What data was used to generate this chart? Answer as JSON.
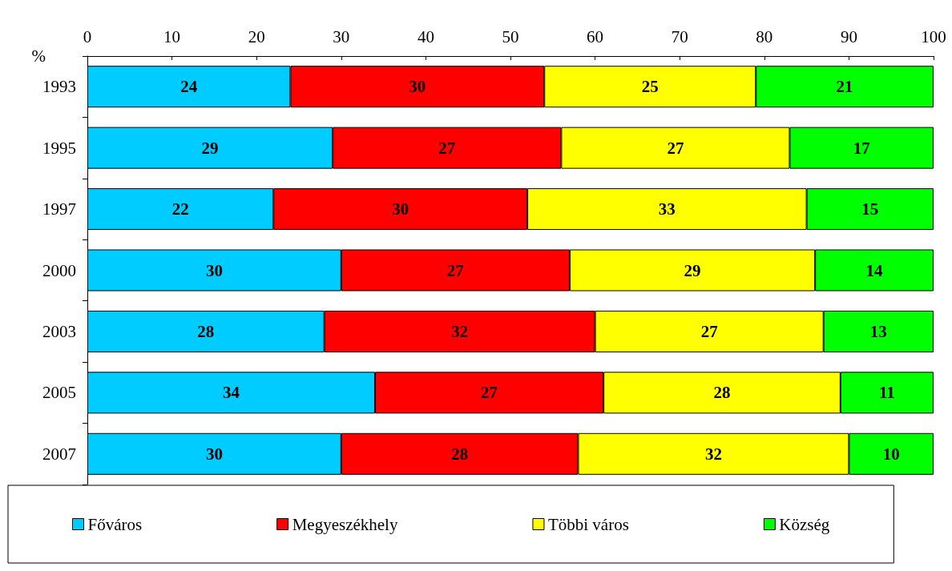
{
  "chart_data": {
    "type": "bar",
    "orientation": "horizontal",
    "stacked": true,
    "xlabel": "%",
    "categories": [
      "1993",
      "1995",
      "1997",
      "2000",
      "2003",
      "2005",
      "2007"
    ],
    "series": [
      {
        "name": "Főváros",
        "color": "#00ccff",
        "values": [
          24,
          29,
          22,
          30,
          28,
          34,
          30
        ]
      },
      {
        "name": "Megyeszékhely",
        "color": "#ff0000",
        "values": [
          30,
          27,
          30,
          27,
          32,
          27,
          28
        ]
      },
      {
        "name": "Többi város",
        "color": "#ffff00",
        "values": [
          25,
          27,
          33,
          29,
          27,
          28,
          32
        ]
      },
      {
        "name": "Község",
        "color": "#00ff00",
        "values": [
          21,
          17,
          15,
          14,
          13,
          11,
          10
        ]
      }
    ],
    "xlim": [
      0,
      100
    ],
    "xticks": [
      0,
      10,
      20,
      30,
      40,
      50,
      60,
      70,
      80,
      90,
      100
    ],
    "data_labels": true,
    "grid": false,
    "legend": "bottom"
  }
}
